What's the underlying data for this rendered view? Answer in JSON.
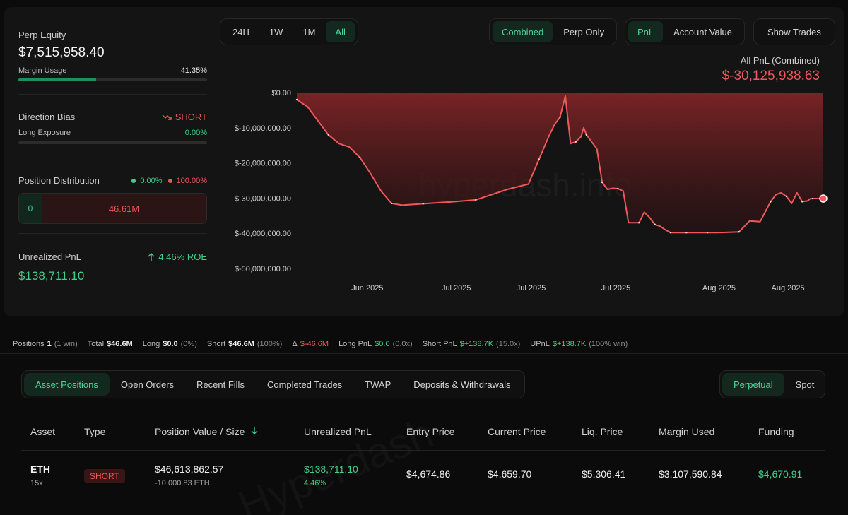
{
  "summary": {
    "perp_equity_label": "Perp Equity",
    "perp_equity_value": "$7,515,958.40",
    "margin_usage_label": "Margin Usage",
    "margin_usage_value": "41.35%",
    "margin_usage_fraction": 0.4135,
    "direction_bias_label": "Direction Bias",
    "direction_bias_value": "SHORT",
    "long_exposure_label": "Long Exposure",
    "long_exposure_value": "0.00%",
    "long_exposure_fraction": 0.0,
    "position_distribution_label": "Position Distribution",
    "dist_long_pct": "0.00%",
    "dist_short_pct": "100.00%",
    "dist_long_value": "0",
    "dist_short_value": "46.61M",
    "unrealized_pnl_label": "Unrealized PnL",
    "roe_value": "4.46% ROE",
    "unrealized_pnl_value": "$138,711.10"
  },
  "controls": {
    "timeframes": [
      "24H",
      "1W",
      "1M",
      "All"
    ],
    "active_timeframe": "All",
    "modes": [
      "Combined",
      "Perp Only"
    ],
    "active_mode": "Combined",
    "metrics": [
      "PnL",
      "Account Value"
    ],
    "active_metric": "PnL",
    "show_trades_label": "Show Trades"
  },
  "chart_header": {
    "title": "All PnL (Combined)",
    "value": "$-30,125,938.63"
  },
  "watermark": "hyperdash.info",
  "colors": {
    "accent_green": "#3fd18a",
    "loss_red": "#f0575a",
    "area_fill_top": "#7a2326"
  },
  "chart_data": {
    "type": "area",
    "y_tick_labels": [
      "$0.00",
      "$-10,000,000.00",
      "$-20,000,000.00",
      "$-30,000,000.00",
      "$-40,000,000.00",
      "$-50,000,000.00"
    ],
    "y_ticks": [
      0,
      -10000000,
      -20000000,
      -30000000,
      -40000000,
      -50000000
    ],
    "ylim": [
      -50000000,
      0
    ],
    "x_tick_labels": [
      "Jun 2025",
      "Jul 2025",
      "Jul 2025",
      "Jul 2025",
      "Aug 2025",
      "Aug 2025"
    ],
    "x_tick_positions": [
      0.134,
      0.303,
      0.445,
      0.606,
      0.802,
      0.933
    ],
    "grid": false,
    "series": [
      {
        "x": [
          0.0,
          0.02,
          0.04,
          0.06,
          0.08,
          0.1,
          0.12,
          0.14,
          0.16,
          0.18,
          0.2,
          0.22,
          0.24,
          0.26,
          0.3,
          0.34,
          0.4,
          0.44,
          0.46,
          0.48,
          0.49,
          0.5,
          0.51,
          0.52,
          0.53,
          0.54,
          0.545,
          0.55,
          0.56,
          0.57,
          0.58,
          0.59,
          0.6,
          0.61,
          0.62,
          0.63,
          0.65,
          0.66,
          0.67,
          0.68,
          0.69,
          0.7,
          0.71,
          0.72,
          0.73,
          0.74,
          0.75,
          0.76,
          0.78,
          0.8,
          0.82,
          0.84,
          0.86,
          0.88,
          0.9,
          0.91,
          0.92,
          0.93,
          0.94,
          0.95,
          0.96,
          0.97,
          0.975,
          0.98,
          0.985,
          0.99,
          1.0
        ],
        "values": [
          -2000000,
          -4000000,
          -8000000,
          -12000000,
          -14500000,
          -15500000,
          -18500000,
          -23000000,
          -28000000,
          -31500000,
          -32000000,
          -31800000,
          -31600000,
          -31400000,
          -31000000,
          -30500000,
          -27500000,
          -26000000,
          -19000000,
          -12000000,
          -9000000,
          -7000000,
          -1000000,
          -14500000,
          -14000000,
          -12500000,
          -10000000,
          -12000000,
          -14000000,
          -16000000,
          -25500000,
          -27500000,
          -27200000,
          -27300000,
          -28000000,
          -37000000,
          -37000000,
          -34000000,
          -35500000,
          -37500000,
          -38000000,
          -39000000,
          -39800000,
          -39800000,
          -39800000,
          -39800000,
          -39800000,
          -39800000,
          -39800000,
          -39800000,
          -39700000,
          -39600000,
          -36500000,
          -36700000,
          -31000000,
          -29000000,
          -28500000,
          -29500000,
          -31500000,
          -28500000,
          -31000000,
          -30800000,
          -30200000,
          -30125938,
          -30125938,
          -30125938,
          -30125938
        ]
      }
    ]
  },
  "stats": {
    "positions_label": "Positions",
    "positions_value": "1",
    "positions_note": "(1 win)",
    "total_label": "Total",
    "total_value": "$46.6M",
    "long_label": "Long",
    "long_value": "$0.0",
    "long_note": "(0%)",
    "short_label": "Short",
    "short_value": "$46.6M",
    "short_note": "(100%)",
    "delta_label": "Δ",
    "delta_value": "$-46.6M",
    "long_pnl_label": "Long PnL",
    "long_pnl_value": "$0.0",
    "long_pnl_note": "(0.0x)",
    "short_pnl_label": "Short PnL",
    "short_pnl_value": "$+138.7K",
    "short_pnl_note": "(15.0x)",
    "upnl_label": "UPnL",
    "upnl_value": "$+138.7K",
    "upnl_note": "(100% win)"
  },
  "tabs": {
    "items": [
      "Asset Positions",
      "Open Orders",
      "Recent Fills",
      "Completed Trades",
      "TWAP",
      "Deposits & Withdrawals"
    ],
    "active": "Asset Positions",
    "market_types": [
      "Perpetual",
      "Spot"
    ],
    "active_market": "Perpetual"
  },
  "table": {
    "headers": [
      "Asset",
      "Type",
      "Position Value / Size",
      "Unrealized PnL",
      "Entry Price",
      "Current Price",
      "Liq. Price",
      "Margin Used",
      "Funding"
    ],
    "rows": [
      {
        "asset": "ETH",
        "leverage": "15x",
        "type": "SHORT",
        "position_value": "$46,613,862.57",
        "position_size": "-10,000.83 ETH",
        "unrealized_pnl": "$138,711.10",
        "unrealized_pnl_pct": "4.46%",
        "entry_price": "$4,674.86",
        "current_price": "$4,659.70",
        "liq_price": "$5,306.41",
        "margin_used": "$3,107,590.84",
        "funding": "$4,670.91"
      }
    ]
  }
}
